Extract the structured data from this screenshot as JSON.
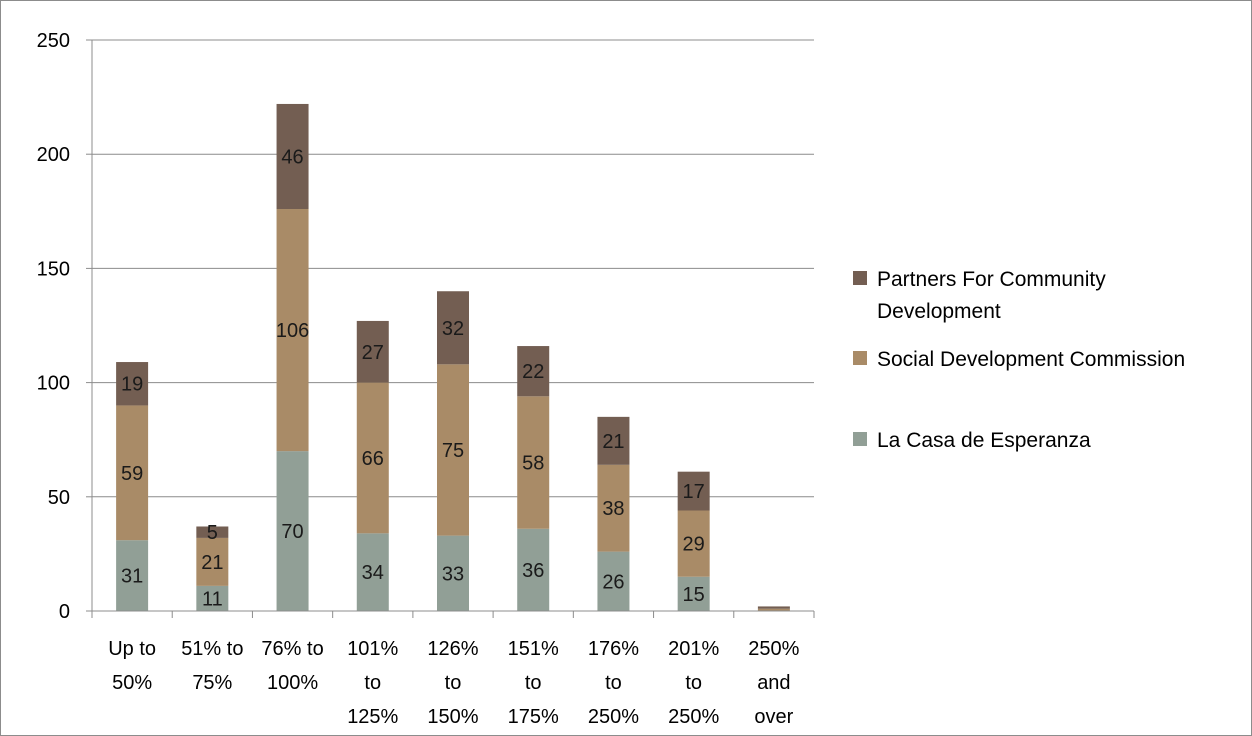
{
  "chart_data": {
    "type": "bar",
    "stacked": true,
    "categories": [
      [
        "Up to",
        "50%"
      ],
      [
        "51% to",
        "75%"
      ],
      [
        "76% to",
        "100%"
      ],
      [
        "101%",
        "to",
        "125%"
      ],
      [
        "126%",
        "to",
        "150%"
      ],
      [
        "151%",
        "to",
        "175%"
      ],
      [
        "176%",
        "to",
        "250%"
      ],
      [
        "201%",
        "to",
        "250%"
      ],
      [
        "250%",
        "and",
        "over"
      ]
    ],
    "series": [
      {
        "name": "La Casa de Esperanza",
        "color": "#919f96",
        "values": [
          31,
          11,
          70,
          34,
          33,
          36,
          26,
          15,
          0
        ],
        "labels": [
          "31",
          "11",
          "70",
          "34",
          "33",
          "36",
          "26",
          "15",
          ""
        ]
      },
      {
        "name": "Social Development Commission",
        "color": "#a98b67",
        "values": [
          59,
          21,
          106,
          66,
          75,
          58,
          38,
          29,
          1
        ],
        "labels": [
          "59",
          "21",
          "106",
          "66",
          "75",
          "58",
          "38",
          "29",
          ""
        ]
      },
      {
        "name": "Partners For Community Development",
        "legend_lines": [
          "Partners For Community",
          "Development"
        ],
        "color": "#735e52",
        "values": [
          19,
          5,
          46,
          27,
          32,
          22,
          21,
          17,
          1
        ],
        "labels": [
          "19",
          "5",
          "46",
          "27",
          "32",
          "22",
          "21",
          "17",
          ""
        ]
      }
    ],
    "yticks": [
      "0",
      "50",
      "100",
      "150",
      "200",
      "250"
    ],
    "ylim": [
      0,
      250
    ],
    "grid": true,
    "legend_position": "right"
  }
}
